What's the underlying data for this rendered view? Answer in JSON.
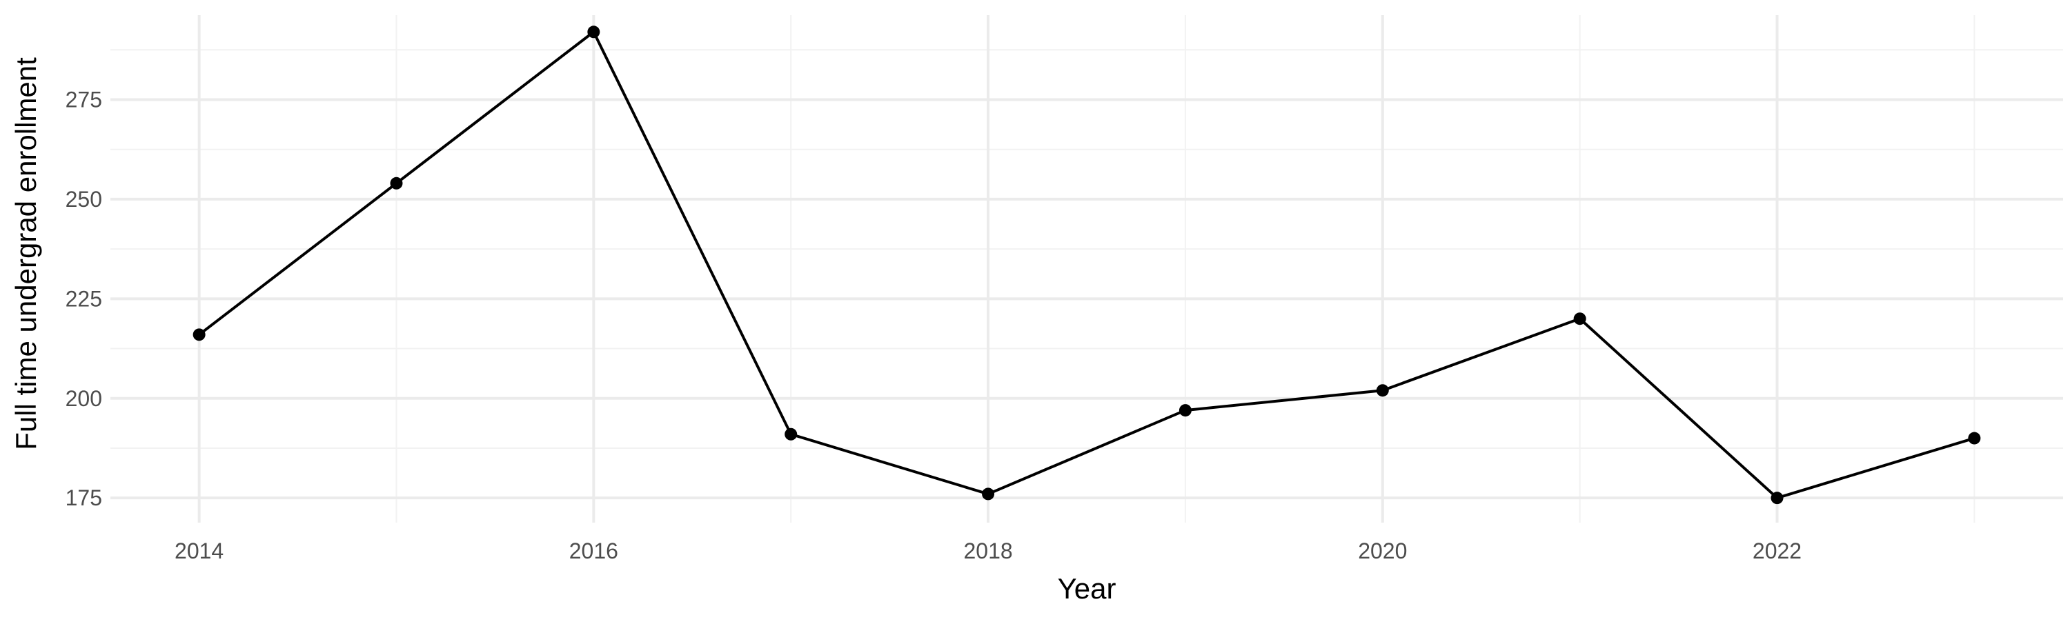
{
  "chart_data": {
    "type": "line",
    "title": "",
    "xlabel": "Year",
    "ylabel": "Full time undergrad enrollment",
    "x": [
      2014,
      2015,
      2016,
      2017,
      2018,
      2019,
      2020,
      2021,
      2022,
      2023
    ],
    "series": [
      {
        "values": [
          216,
          254,
          292,
          191,
          176,
          197,
          202,
          220,
          175,
          190
        ]
      }
    ],
    "x_ticks": [
      2014,
      2016,
      2018,
      2020,
      2022
    ],
    "x_tick_labels": [
      "2014",
      "2016",
      "2018",
      "2020",
      "2022"
    ],
    "y_ticks": [
      175,
      200,
      225,
      250,
      275
    ],
    "y_tick_labels": [
      "175",
      "200",
      "225",
      "250",
      "275"
    ],
    "xlim": [
      2013.55,
      2023.45
    ],
    "ylim": [
      168.8,
      296.2
    ],
    "grid": true,
    "legend": "none",
    "colors": {
      "line": "#000000",
      "point": "#000000",
      "grid_major": "#ebebeb",
      "grid_minor": "#f2f2f2",
      "tick_text": "#4d4d4d",
      "axis_title": "#000000",
      "background": "#ffffff"
    }
  }
}
